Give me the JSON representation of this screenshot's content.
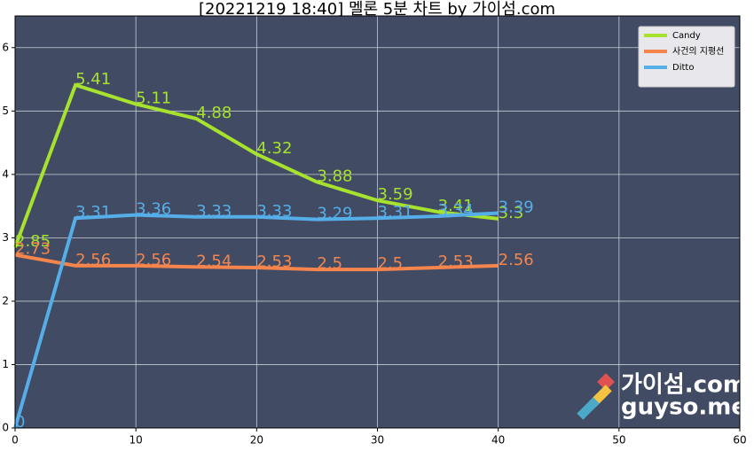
{
  "chart_data": {
    "type": "line",
    "title": "[20221219 18:40] 멜론 5분 차트 by 가이섬.com",
    "x": [
      0,
      5,
      10,
      15,
      20,
      25,
      30,
      35,
      40
    ],
    "series": [
      {
        "name": "Candy",
        "color": "#a6e22e",
        "values": [
          2.85,
          5.41,
          5.11,
          4.88,
          4.32,
          3.88,
          3.59,
          3.41,
          3.3
        ]
      },
      {
        "name": "사건의 지평선",
        "color": "#f5854d",
        "values": [
          2.73,
          2.56,
          2.56,
          2.54,
          2.53,
          2.5,
          2.5,
          2.53,
          2.56
        ]
      },
      {
        "name": "Ditto",
        "color": "#56aee8",
        "values": [
          0,
          3.31,
          3.36,
          3.33,
          3.33,
          3.29,
          3.31,
          3.34,
          3.39
        ]
      }
    ],
    "xlim": [
      0,
      60
    ],
    "xticks": [
      0,
      10,
      20,
      30,
      40,
      50,
      60
    ],
    "ylim": [
      0,
      6.5
    ],
    "yticks": [
      0,
      1,
      2,
      3,
      4,
      5,
      6
    ],
    "grid": true,
    "legend": "upper right",
    "watermark": [
      "가이섬.com",
      "guyso.me"
    ]
  }
}
